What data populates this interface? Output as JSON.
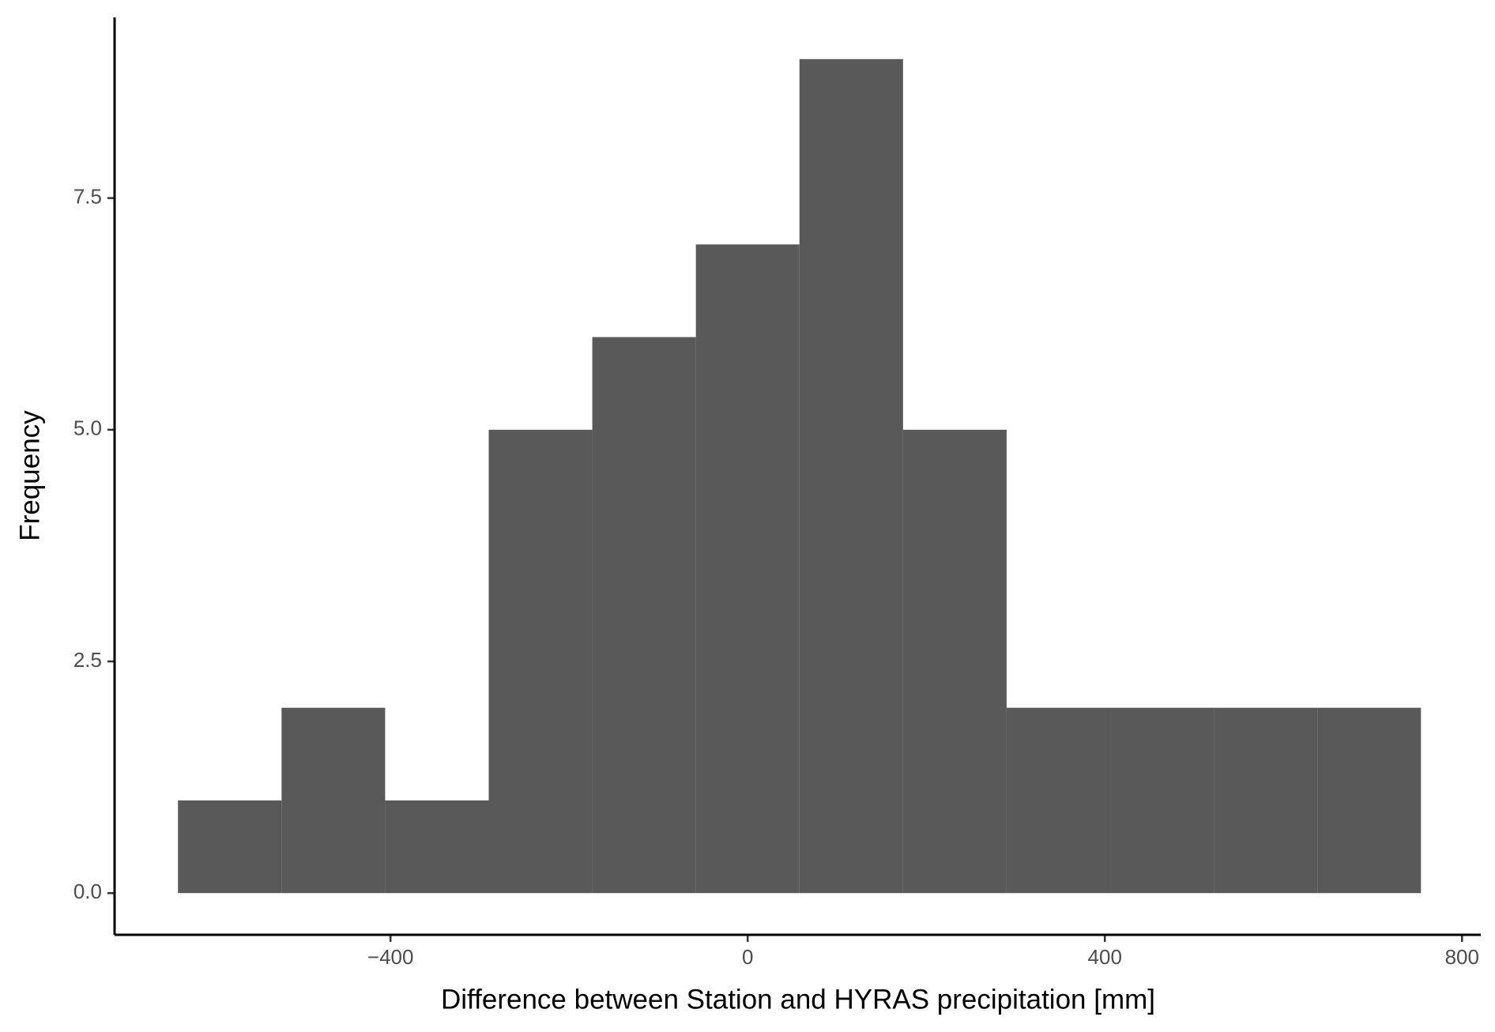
{
  "chart_data": {
    "type": "histogram",
    "xlabel": "Difference between Station and HYRAS precipitation [mm]",
    "ylabel": "Frequency",
    "bins": [
      -638,
      -522,
      -406,
      -290,
      -174,
      -58,
      58,
      174,
      290,
      406,
      522,
      638,
      754
    ],
    "values": [
      1,
      2,
      1,
      5,
      6,
      7,
      9,
      5,
      2,
      2,
      2,
      2
    ],
    "color": "#595959",
    "xlim": [
      -709,
      821
    ],
    "ylim": [
      -0.45,
      9.45
    ],
    "xticks": [
      {
        "value": -400,
        "label": "−400"
      },
      0,
      400,
      800
    ],
    "yticks": [
      {
        "value": 0,
        "label": "0.0"
      },
      2.5,
      {
        "value": 5,
        "label": "5.0"
      },
      7.5
    ],
    "grid": false
  }
}
